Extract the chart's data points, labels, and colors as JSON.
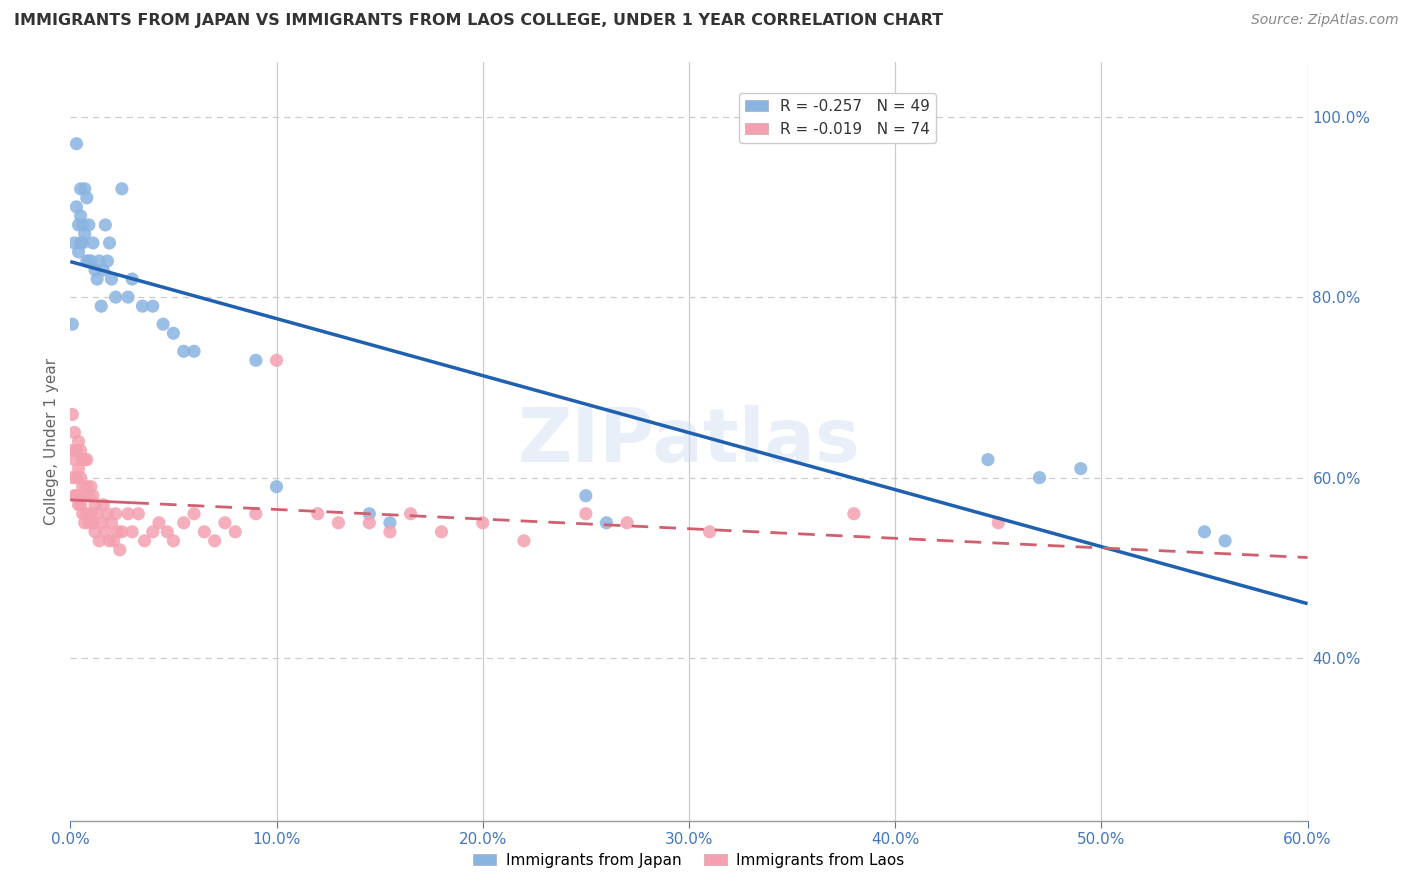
{
  "title": "IMMIGRANTS FROM JAPAN VS IMMIGRANTS FROM LAOS COLLEGE, UNDER 1 YEAR CORRELATION CHART",
  "source": "Source: ZipAtlas.com",
  "ylabel": "College, Under 1 year",
  "xlim": [
    0.0,
    0.6
  ],
  "ylim": [
    0.22,
    1.06
  ],
  "yticks_right": [
    0.4,
    0.6,
    0.8,
    1.0
  ],
  "xticks": [
    0.0,
    0.1,
    0.2,
    0.3,
    0.4,
    0.5,
    0.6
  ],
  "japan_color": "#8ab4e0",
  "laos_color": "#f4a0b0",
  "trend_japan_color": "#2060b0",
  "trend_laos_color": "#d06070",
  "japan_R": -0.257,
  "japan_N": 49,
  "laos_R": -0.019,
  "laos_N": 74,
  "legend_labels": [
    "R = -0.257   N = 49",
    "R = -0.019   N = 74"
  ],
  "japan_x": [
    0.001,
    0.002,
    0.003,
    0.003,
    0.004,
    0.004,
    0.005,
    0.005,
    0.005,
    0.006,
    0.006,
    0.007,
    0.007,
    0.008,
    0.008,
    0.009,
    0.009,
    0.01,
    0.011,
    0.012,
    0.013,
    0.014,
    0.015,
    0.016,
    0.017,
    0.018,
    0.019,
    0.02,
    0.022,
    0.025,
    0.028,
    0.03,
    0.035,
    0.04,
    0.045,
    0.05,
    0.055,
    0.06,
    0.09,
    0.1,
    0.145,
    0.155,
    0.25,
    0.26,
    0.445,
    0.47,
    0.49,
    0.55,
    0.56
  ],
  "japan_y": [
    0.77,
    0.86,
    0.9,
    0.97,
    0.88,
    0.85,
    0.92,
    0.89,
    0.86,
    0.88,
    0.86,
    0.87,
    0.92,
    0.84,
    0.91,
    0.88,
    0.84,
    0.84,
    0.86,
    0.83,
    0.82,
    0.84,
    0.79,
    0.83,
    0.88,
    0.84,
    0.86,
    0.82,
    0.8,
    0.92,
    0.8,
    0.82,
    0.79,
    0.79,
    0.77,
    0.76,
    0.74,
    0.74,
    0.73,
    0.59,
    0.56,
    0.55,
    0.58,
    0.55,
    0.62,
    0.6,
    0.61,
    0.54,
    0.53
  ],
  "laos_x": [
    0.001,
    0.001,
    0.001,
    0.002,
    0.002,
    0.002,
    0.003,
    0.003,
    0.003,
    0.004,
    0.004,
    0.004,
    0.005,
    0.005,
    0.005,
    0.006,
    0.006,
    0.006,
    0.007,
    0.007,
    0.007,
    0.008,
    0.008,
    0.008,
    0.009,
    0.009,
    0.01,
    0.01,
    0.011,
    0.011,
    0.012,
    0.012,
    0.013,
    0.014,
    0.015,
    0.016,
    0.017,
    0.018,
    0.019,
    0.02,
    0.021,
    0.022,
    0.023,
    0.024,
    0.025,
    0.028,
    0.03,
    0.033,
    0.036,
    0.04,
    0.043,
    0.047,
    0.05,
    0.055,
    0.06,
    0.065,
    0.07,
    0.075,
    0.08,
    0.09,
    0.1,
    0.12,
    0.13,
    0.145,
    0.155,
    0.165,
    0.18,
    0.2,
    0.22,
    0.25,
    0.27,
    0.31,
    0.38,
    0.45
  ],
  "laos_y": [
    0.6,
    0.63,
    0.67,
    0.58,
    0.62,
    0.65,
    0.58,
    0.6,
    0.63,
    0.57,
    0.61,
    0.64,
    0.57,
    0.6,
    0.63,
    0.56,
    0.59,
    0.62,
    0.55,
    0.58,
    0.62,
    0.56,
    0.59,
    0.62,
    0.55,
    0.58,
    0.56,
    0.59,
    0.55,
    0.58,
    0.54,
    0.57,
    0.56,
    0.53,
    0.55,
    0.57,
    0.54,
    0.56,
    0.53,
    0.55,
    0.53,
    0.56,
    0.54,
    0.52,
    0.54,
    0.56,
    0.54,
    0.56,
    0.53,
    0.54,
    0.55,
    0.54,
    0.53,
    0.55,
    0.56,
    0.54,
    0.53,
    0.55,
    0.54,
    0.56,
    0.73,
    0.56,
    0.55,
    0.55,
    0.54,
    0.56,
    0.54,
    0.55,
    0.53,
    0.56,
    0.55,
    0.54,
    0.56,
    0.55
  ],
  "background_color": "#ffffff",
  "grid_color": "#cccccc",
  "axis_label_color": "#4477bb",
  "title_color": "#333333",
  "watermark_text": "ZIPatlas",
  "watermark_color": "#ccddf0",
  "watermark_alpha": 0.45
}
